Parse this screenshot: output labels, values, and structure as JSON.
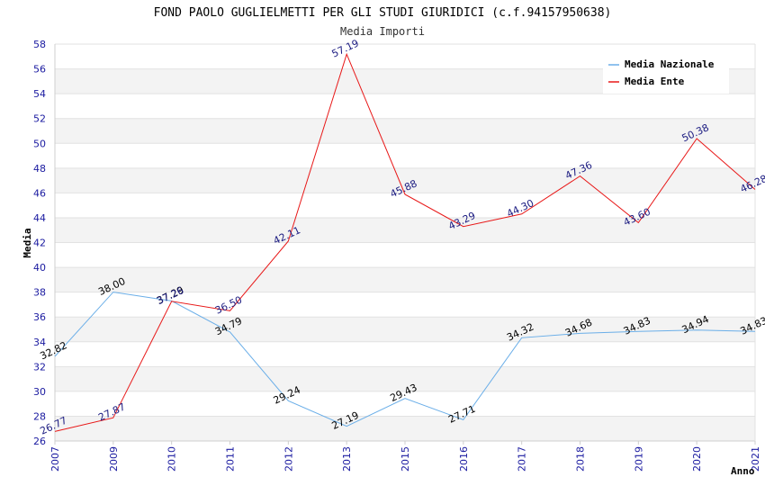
{
  "chart_data": {
    "type": "line",
    "title": "FOND PAOLO GUGLIELMETTI PER GLI STUDI GIURIDICI (c.f.94157950638)",
    "subtitle": "Media Importi",
    "xlabel": "Anno",
    "ylabel": "Media",
    "ylim": [
      26,
      58
    ],
    "ystep": 2,
    "grid": true,
    "legend_position": "top-right",
    "x": [
      "2007",
      "2009",
      "2010",
      "2011",
      "2012",
      "2013",
      "2015",
      "2016",
      "2017",
      "2018",
      "2019",
      "2020",
      "2021"
    ],
    "series": [
      {
        "name": "Media Nazionale",
        "color": "#6aaee8",
        "label_color": "#000000",
        "values": [
          32.82,
          38.0,
          37.29,
          34.79,
          29.24,
          27.19,
          29.43,
          27.71,
          34.32,
          34.68,
          34.83,
          34.94,
          34.83
        ],
        "labels": [
          "32.82",
          "38.00",
          "37.29",
          "34.79",
          "29.24",
          "27.19",
          "29.43",
          "27.71",
          "34.32",
          "34.68",
          "34.83",
          "34.94",
          "34.83"
        ]
      },
      {
        "name": "Media Ente",
        "color": "#e81818",
        "label_color": "#1a1a80",
        "values": [
          26.77,
          27.87,
          37.26,
          36.5,
          42.11,
          57.19,
          45.88,
          43.29,
          44.3,
          47.36,
          43.6,
          50.38,
          46.28
        ],
        "labels": [
          "26.77",
          "27.87",
          "37.26",
          "36.50",
          "42.11",
          "57.19",
          "45.88",
          "43.29",
          "44.30",
          "47.36",
          "43.60",
          "50.38",
          "46.28"
        ]
      }
    ]
  }
}
